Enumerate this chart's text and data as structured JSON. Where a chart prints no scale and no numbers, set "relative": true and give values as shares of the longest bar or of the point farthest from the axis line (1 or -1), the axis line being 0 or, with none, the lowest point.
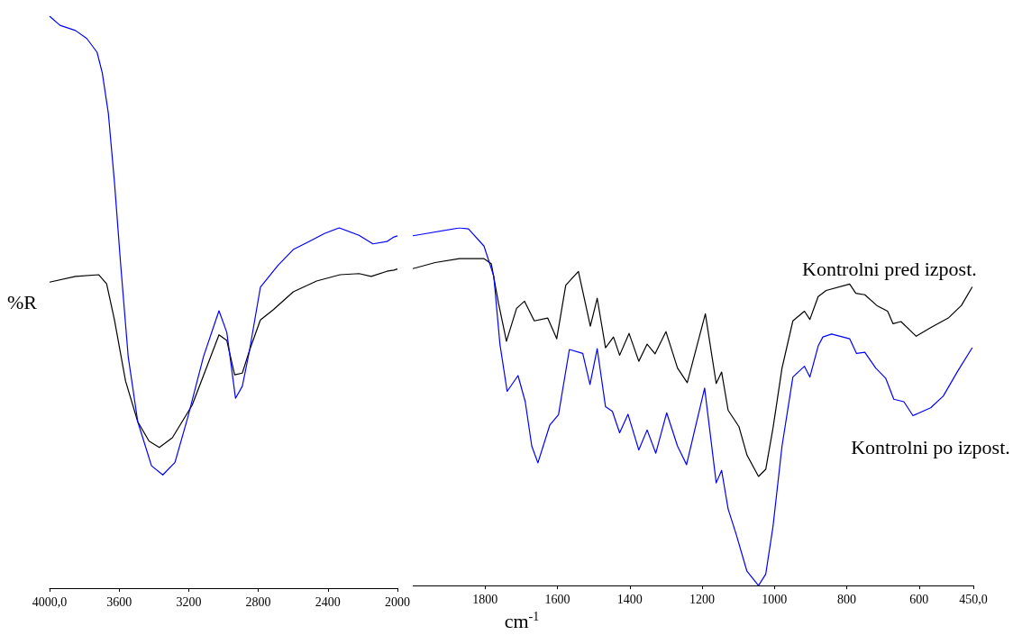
{
  "chart_data": [
    {
      "type": "line",
      "relative": true,
      "ylabel": "%R",
      "xlim": [
        4000,
        2000
      ],
      "xticks": [
        {
          "value": 4000,
          "label": "4000,0"
        },
        3600,
        3200,
        2800,
        2400,
        2000
      ],
      "marker": "none",
      "line_style": "solid",
      "grid": false,
      "legend": false,
      "series": [
        {
          "color": "#000000",
          "x": [
            4000,
            3851,
            3717,
            3672,
            3627,
            3563,
            3493,
            3428,
            3369,
            3294,
            3180,
            3091,
            3026,
            2981,
            2936,
            2892,
            2847,
            2788,
            2713,
            2599,
            2465,
            2330,
            2221,
            2151,
            2061,
            2020,
            2000
          ],
          "values": [
            0.535,
            0.545,
            0.548,
            0.532,
            0.469,
            0.362,
            0.291,
            0.257,
            0.246,
            0.263,
            0.32,
            0.391,
            0.443,
            0.433,
            0.373,
            0.376,
            0.419,
            0.469,
            0.487,
            0.518,
            0.537,
            0.548,
            0.55,
            0.545,
            0.554,
            0.556,
            0.558
          ]
        },
        {
          "color": "#0000ff",
          "x": [
            4000,
            3940,
            3851,
            3786,
            3727,
            3697,
            3662,
            3627,
            3592,
            3548,
            3493,
            3414,
            3349,
            3279,
            3205,
            3115,
            3026,
            2981,
            2931,
            2892,
            2852,
            2788,
            2688,
            2599,
            2509,
            2420,
            2335,
            2221,
            2141,
            2061,
            2020,
            2000
          ],
          "values": [
            1.0,
            0.984,
            0.975,
            0.961,
            0.937,
            0.901,
            0.83,
            0.71,
            0.569,
            0.405,
            0.291,
            0.214,
            0.198,
            0.22,
            0.299,
            0.405,
            0.485,
            0.447,
            0.332,
            0.353,
            0.413,
            0.526,
            0.564,
            0.592,
            0.606,
            0.62,
            0.63,
            0.617,
            0.602,
            0.606,
            0.614,
            0.616
          ]
        }
      ]
    },
    {
      "type": "line",
      "relative": true,
      "xlabel": "cm$^{-1}$",
      "xlim": [
        2000,
        450
      ],
      "xticks": [
        1800,
        1600,
        1400,
        1200,
        1000,
        800,
        600,
        {
          "value": 450,
          "label": "450,0"
        }
      ],
      "marker": "none",
      "line_style": "solid",
      "grid": false,
      "legend": false,
      "series": [
        {
          "name": "Kontrolni pred izpost.",
          "color": "#000000",
          "x": [
            2000,
            1938,
            1871,
            1803,
            1783,
            1763,
            1741,
            1713,
            1691,
            1664,
            1627,
            1602,
            1577,
            1542,
            1509,
            1490,
            1467,
            1445,
            1428,
            1402,
            1375,
            1352,
            1330,
            1300,
            1268,
            1241,
            1191,
            1161,
            1146,
            1128,
            1098,
            1076,
            1044,
            1024,
            1004,
            979,
            949,
            917,
            902,
            879,
            857,
            792,
            775,
            750,
            717,
            687,
            672,
            650,
            608,
            568,
            518,
            483,
            453
          ],
          "values": [
            0.886,
            0.903,
            0.914,
            0.914,
            0.9,
            0.79,
            0.683,
            0.775,
            0.795,
            0.74,
            0.748,
            0.69,
            0.84,
            0.878,
            0.725,
            0.803,
            0.665,
            0.695,
            0.644,
            0.705,
            0.627,
            0.675,
            0.648,
            0.71,
            0.608,
            0.567,
            0.76,
            0.565,
            0.597,
            0.49,
            0.444,
            0.365,
            0.305,
            0.325,
            0.44,
            0.608,
            0.74,
            0.767,
            0.744,
            0.808,
            0.825,
            0.843,
            0.817,
            0.813,
            0.783,
            0.767,
            0.732,
            0.738,
            0.697,
            0.721,
            0.749,
            0.783,
            0.835
          ]
        },
        {
          "name": "Kontrolni po izpost.",
          "color": "#0000ff",
          "x": [
            2000,
            1970,
            1871,
            1846,
            1803,
            1776,
            1759,
            1739,
            1709,
            1689,
            1671,
            1654,
            1621,
            1597,
            1567,
            1530,
            1510,
            1490,
            1467,
            1448,
            1428,
            1405,
            1375,
            1352,
            1328,
            1298,
            1268,
            1243,
            1193,
            1161,
            1146,
            1128,
            1106,
            1076,
            1044,
            1024,
            1004,
            979,
            949,
            917,
            902,
            879,
            866,
            842,
            792,
            773,
            750,
            720,
            692,
            670,
            642,
            617,
            568,
            533,
            493,
            453
          ],
          "values": [
            0.978,
            0.983,
            1.0,
            0.997,
            0.949,
            0.865,
            0.675,
            0.543,
            0.587,
            0.514,
            0.39,
            0.343,
            0.449,
            0.478,
            0.66,
            0.649,
            0.562,
            0.662,
            0.5,
            0.487,
            0.427,
            0.479,
            0.379,
            0.435,
            0.37,
            0.483,
            0.39,
            0.338,
            0.552,
            0.287,
            0.322,
            0.214,
            0.144,
            0.04,
            0.0,
            0.032,
            0.165,
            0.39,
            0.583,
            0.613,
            0.583,
            0.67,
            0.695,
            0.703,
            0.69,
            0.649,
            0.652,
            0.608,
            0.579,
            0.521,
            0.514,
            0.475,
            0.497,
            0.53,
            0.6,
            0.665
          ]
        }
      ]
    }
  ]
}
